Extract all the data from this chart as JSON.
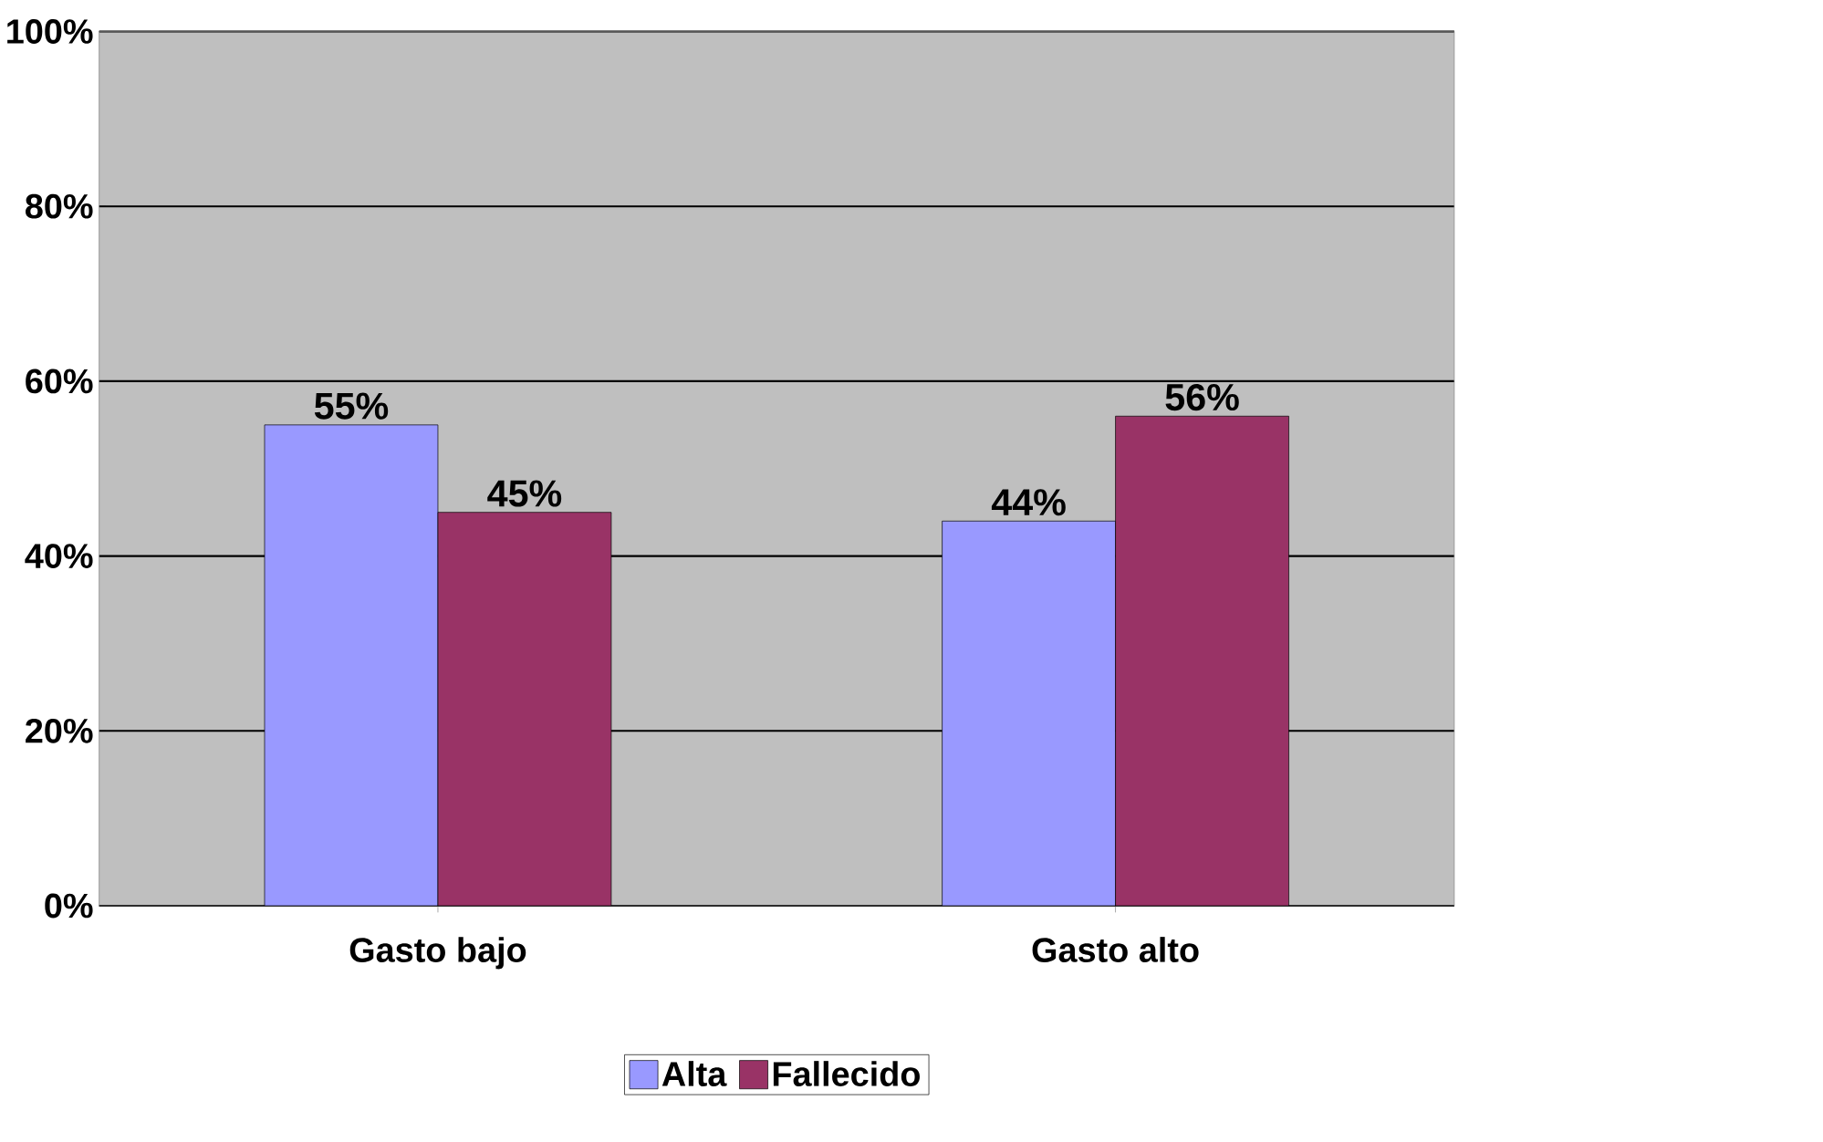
{
  "chart_data": {
    "type": "bar",
    "categories": [
      "Gasto bajo",
      "Gasto alto"
    ],
    "series": [
      {
        "name": "Alta",
        "color": "#9999ff",
        "values": [
          55,
          44
        ],
        "value_labels": [
          "55%",
          "44%"
        ]
      },
      {
        "name": "Fallecido",
        "color": "#993366",
        "values": [
          45,
          56
        ],
        "value_labels": [
          "45%",
          "56%"
        ]
      }
    ],
    "ylim": [
      0,
      100
    ],
    "yticks": [
      {
        "value": 0,
        "label": "0%"
      },
      {
        "value": 20,
        "label": "20%"
      },
      {
        "value": 40,
        "label": "40%"
      },
      {
        "value": 60,
        "label": "60%"
      },
      {
        "value": 80,
        "label": "80%"
      },
      {
        "value": 100,
        "label": "100%"
      }
    ],
    "grid": "y",
    "legend": "bottom"
  }
}
